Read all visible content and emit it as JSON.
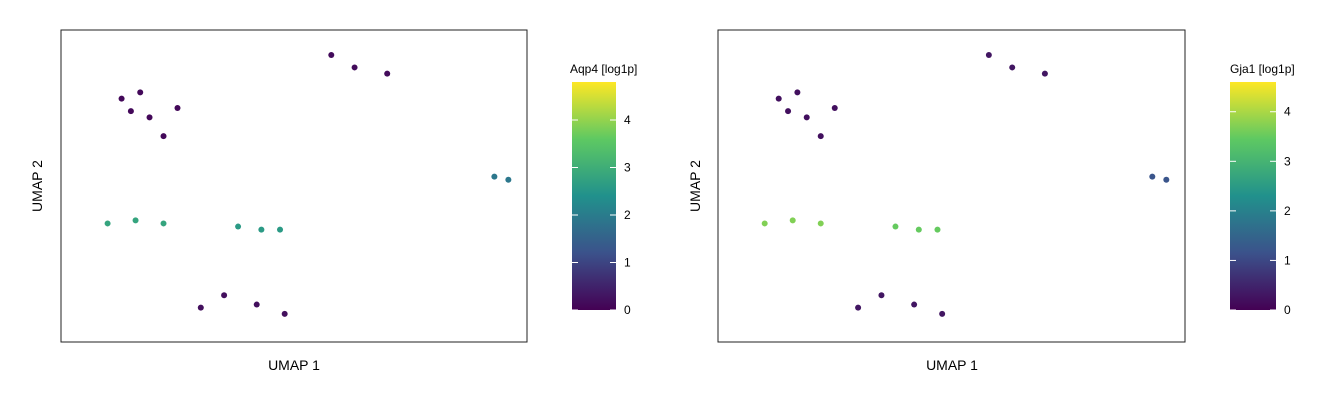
{
  "chart_data": [
    {
      "type": "scatter",
      "xlabel": "UMAP 1",
      "ylabel": "UMAP 2",
      "colorbar": {
        "title": "Aqp4 [log1p]",
        "ticks": [
          0,
          1,
          2,
          3,
          4
        ],
        "range": [
          0,
          4.8
        ],
        "colormap": [
          "#440154",
          "#3b528b",
          "#21918c",
          "#5ec962",
          "#fde725"
        ]
      },
      "series": [
        {
          "points": [
            [
              0.15,
              0.74
            ],
            [
              0.13,
              0.78
            ],
            [
              0.19,
              0.72
            ],
            [
              0.22,
              0.66
            ],
            [
              0.17,
              0.8
            ],
            [
              0.25,
              0.75
            ]
          ],
          "value": 0.1
        },
        {
          "points": [
            [
              0.58,
              0.92
            ],
            [
              0.63,
              0.88
            ],
            [
              0.7,
              0.86
            ]
          ],
          "value": 0.15
        },
        {
          "points": [
            [
              0.93,
              0.53
            ],
            [
              0.96,
              0.52
            ]
          ],
          "value": 1.9
        },
        {
          "points": [
            [
              0.1,
              0.38
            ],
            [
              0.16,
              0.39
            ],
            [
              0.22,
              0.38
            ]
          ],
          "value": 2.8
        },
        {
          "points": [
            [
              0.38,
              0.37
            ],
            [
              0.43,
              0.36
            ],
            [
              0.47,
              0.36
            ]
          ],
          "value": 2.6
        },
        {
          "points": [
            [
              0.3,
              0.11
            ],
            [
              0.42,
              0.12
            ],
            [
              0.48,
              0.09
            ],
            [
              0.35,
              0.15
            ]
          ],
          "value": 0.2
        }
      ]
    },
    {
      "type": "scatter",
      "xlabel": "UMAP 1",
      "ylabel": "UMAP 2",
      "colorbar": {
        "title": "Gja1 [log1p]",
        "ticks": [
          0,
          1,
          2,
          3,
          4
        ],
        "range": [
          0,
          4.6
        ],
        "colormap": [
          "#440154",
          "#3b528b",
          "#21918c",
          "#5ec962",
          "#fde725"
        ]
      },
      "series": [
        {
          "points": [
            [
              0.15,
              0.74
            ],
            [
              0.13,
              0.78
            ],
            [
              0.19,
              0.72
            ],
            [
              0.22,
              0.66
            ],
            [
              0.17,
              0.8
            ],
            [
              0.25,
              0.75
            ]
          ],
          "value": 0.2
        },
        {
          "points": [
            [
              0.58,
              0.92
            ],
            [
              0.63,
              0.88
            ],
            [
              0.7,
              0.86
            ]
          ],
          "value": 0.3
        },
        {
          "points": [
            [
              0.93,
              0.53
            ],
            [
              0.96,
              0.52
            ]
          ],
          "value": 1.2
        },
        {
          "points": [
            [
              0.1,
              0.38
            ],
            [
              0.16,
              0.39
            ],
            [
              0.22,
              0.38
            ]
          ],
          "value": 3.7
        },
        {
          "points": [
            [
              0.38,
              0.37
            ],
            [
              0.43,
              0.36
            ],
            [
              0.47,
              0.36
            ]
          ],
          "value": 3.5
        },
        {
          "points": [
            [
              0.3,
              0.11
            ],
            [
              0.42,
              0.12
            ],
            [
              0.48,
              0.09
            ],
            [
              0.35,
              0.15
            ]
          ],
          "value": 0.3
        }
      ]
    }
  ]
}
